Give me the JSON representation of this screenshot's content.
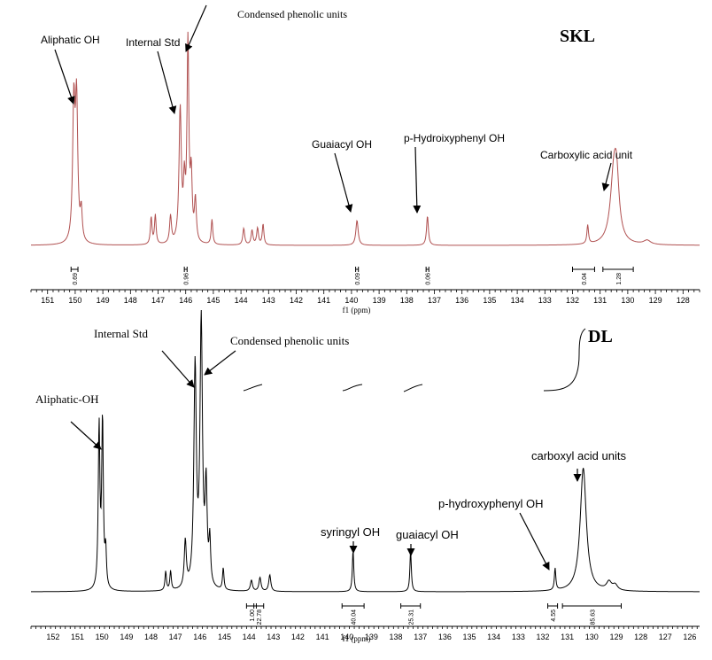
{
  "chart_data": [
    {
      "type": "line",
      "title": "SKL",
      "xlabel": "f1 (ppm)",
      "xlim": [
        151.6,
        127.4
      ],
      "x_reversed": true,
      "ticks": [
        151,
        150,
        149,
        148,
        147,
        146,
        145,
        144,
        143,
        142,
        141,
        140,
        139,
        138,
        137,
        136,
        135,
        134,
        133,
        132,
        131,
        130,
        129,
        128
      ],
      "line_color": "#b05050",
      "peaks": [
        {
          "x": 150.05,
          "y": 0.65,
          "w": 0.05
        },
        {
          "x": 149.95,
          "y": 0.66,
          "w": 0.05
        },
        {
          "x": 149.78,
          "y": 0.14,
          "w": 0.04
        },
        {
          "x": 147.25,
          "y": 0.13,
          "w": 0.035
        },
        {
          "x": 147.1,
          "y": 0.14,
          "w": 0.035
        },
        {
          "x": 146.55,
          "y": 0.13,
          "w": 0.04
        },
        {
          "x": 146.2,
          "y": 0.64,
          "w": 0.05
        },
        {
          "x": 146.05,
          "y": 0.25,
          "w": 0.04
        },
        {
          "x": 145.92,
          "y": 0.95,
          "w": 0.04
        },
        {
          "x": 145.8,
          "y": 0.3,
          "w": 0.04
        },
        {
          "x": 145.65,
          "y": 0.2,
          "w": 0.04
        },
        {
          "x": 145.05,
          "y": 0.12,
          "w": 0.035
        },
        {
          "x": 143.9,
          "y": 0.08,
          "w": 0.04
        },
        {
          "x": 143.6,
          "y": 0.07,
          "w": 0.04
        },
        {
          "x": 143.4,
          "y": 0.08,
          "w": 0.04
        },
        {
          "x": 143.2,
          "y": 0.1,
          "w": 0.035
        },
        {
          "x": 139.8,
          "y": 0.12,
          "w": 0.05
        },
        {
          "x": 137.25,
          "y": 0.14,
          "w": 0.04
        },
        {
          "x": 131.45,
          "y": 0.09,
          "w": 0.035
        },
        {
          "x": 130.5,
          "y": 0.34,
          "w": 0.15
        },
        {
          "x": 130.4,
          "y": 0.2,
          "w": 0.1
        },
        {
          "x": 129.3,
          "y": 0.02,
          "w": 0.15
        }
      ],
      "integrals": [
        {
          "from": 150.15,
          "to": 149.9,
          "label": "0.69"
        },
        {
          "from": 146.05,
          "to": 145.95,
          "label": "0.96"
        },
        {
          "from": 139.85,
          "to": 139.75,
          "label": "0.09"
        },
        {
          "from": 137.3,
          "to": 137.2,
          "label": "0.06"
        },
        {
          "from": 132.0,
          "to": 131.2,
          "label": "0.04"
        },
        {
          "from": 130.9,
          "to": 129.8,
          "label": "1.28"
        }
      ],
      "annotations": [
        {
          "text": "Aliphatic OH",
          "x": 150.0
        },
        {
          "text": "Internal Std",
          "x": 146.2
        },
        {
          "text": "Condensed phenolic units",
          "x": 145.92
        },
        {
          "text": "Guaiacyl OH",
          "x": 139.8
        },
        {
          "text": "p-Hydroixyphenyl OH",
          "x": 137.25
        },
        {
          "text": "Carboxylic acid unit",
          "x": 130.5
        }
      ]
    },
    {
      "type": "line",
      "title": "DL",
      "xlabel": "f1 (ppm)",
      "xlim": [
        152.9,
        125.6
      ],
      "x_reversed": true,
      "ticks": [
        152,
        151,
        150,
        149,
        148,
        147,
        146,
        145,
        144,
        143,
        142,
        141,
        140,
        139,
        138,
        137,
        136,
        135,
        134,
        133,
        132,
        131,
        130,
        129,
        128,
        127,
        126
      ],
      "line_color": "#000000",
      "peaks": [
        {
          "x": 150.12,
          "y": 0.59,
          "w": 0.04
        },
        {
          "x": 149.98,
          "y": 0.61,
          "w": 0.04
        },
        {
          "x": 149.85,
          "y": 0.13,
          "w": 0.035
        },
        {
          "x": 147.4,
          "y": 0.07,
          "w": 0.035
        },
        {
          "x": 147.2,
          "y": 0.07,
          "w": 0.035
        },
        {
          "x": 146.6,
          "y": 0.17,
          "w": 0.05
        },
        {
          "x": 146.2,
          "y": 0.8,
          "w": 0.06
        },
        {
          "x": 145.95,
          "y": 0.96,
          "w": 0.06
        },
        {
          "x": 145.75,
          "y": 0.35,
          "w": 0.05
        },
        {
          "x": 145.6,
          "y": 0.16,
          "w": 0.04
        },
        {
          "x": 145.05,
          "y": 0.08,
          "w": 0.035
        },
        {
          "x": 143.9,
          "y": 0.04,
          "w": 0.05
        },
        {
          "x": 143.55,
          "y": 0.05,
          "w": 0.05
        },
        {
          "x": 143.15,
          "y": 0.06,
          "w": 0.05
        },
        {
          "x": 139.75,
          "y": 0.15,
          "w": 0.035
        },
        {
          "x": 137.4,
          "y": 0.15,
          "w": 0.035
        },
        {
          "x": 131.5,
          "y": 0.08,
          "w": 0.035
        },
        {
          "x": 130.35,
          "y": 0.45,
          "w": 0.15
        },
        {
          "x": 129.3,
          "y": 0.03,
          "w": 0.12
        },
        {
          "x": 129.05,
          "y": 0.02,
          "w": 0.12
        }
      ],
      "integrals": [
        {
          "from": 144.1,
          "to": 143.7,
          "label": "1.00"
        },
        {
          "from": 143.8,
          "to": 143.4,
          "label": "22.78"
        },
        {
          "from": 140.2,
          "to": 139.3,
          "label": "40.04"
        },
        {
          "from": 137.8,
          "to": 137.0,
          "label": "25.31"
        },
        {
          "from": 131.8,
          "to": 131.4,
          "label": "4.55"
        },
        {
          "from": 131.2,
          "to": 128.8,
          "label": "85.63"
        }
      ],
      "annotations": [
        {
          "text": "Aliphatic-OH",
          "x": 150.05
        },
        {
          "text": "Internal Std",
          "x": 146.2
        },
        {
          "text": "Condensed phenolic units",
          "x": 145.95
        },
        {
          "text": "syringyl OH",
          "x": 139.75
        },
        {
          "text": "guaiacyl OH",
          "x": 137.4
        },
        {
          "text": "p-hydroxyphenyl OH",
          "x": 131.5
        },
        {
          "text": "carboxyl acid units",
          "x": 130.35
        }
      ]
    }
  ]
}
